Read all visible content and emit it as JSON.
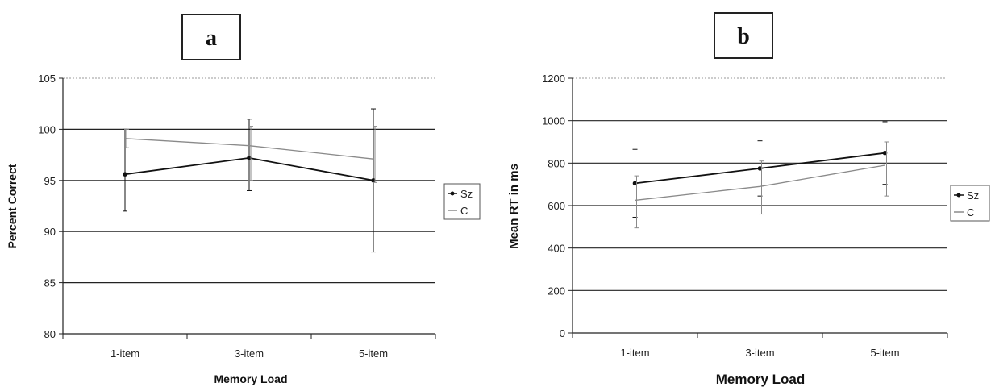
{
  "chart_data": [
    {
      "type": "line",
      "panel_label": "a",
      "categories": [
        "1-item",
        "3-item",
        "5-item"
      ],
      "xlabel": "Memory Load",
      "ylabel": "Percent Correct",
      "ylim": [
        80,
        105
      ],
      "yticks": [
        80,
        85,
        90,
        95,
        100,
        105
      ],
      "grid": true,
      "legend_position": "right",
      "series": [
        {
          "name": "Sz",
          "values": [
            95.6,
            97.2,
            95.0
          ],
          "err_low": [
            92.0,
            94.0,
            88.0
          ],
          "err_high": [
            100.0,
            101.0,
            102.0
          ],
          "color": "#111111",
          "marker": "dot"
        },
        {
          "name": "C",
          "values": [
            99.1,
            98.4,
            97.1
          ],
          "err_low": [
            98.2,
            95.0,
            94.8
          ],
          "err_high": [
            100.0,
            100.3,
            100.3
          ],
          "color": "#8a8a8a",
          "marker": "none"
        }
      ]
    },
    {
      "type": "line",
      "panel_label": "b",
      "categories": [
        "1-item",
        "3-item",
        "5-item"
      ],
      "xlabel": "Memory Load",
      "ylabel": "Mean RT in ms",
      "ylim": [
        0,
        1200
      ],
      "yticks": [
        0,
        200,
        400,
        600,
        800,
        1000,
        1200
      ],
      "grid": true,
      "legend_position": "right",
      "series": [
        {
          "name": "Sz",
          "values": [
            705,
            775,
            848
          ],
          "err_low": [
            545,
            645,
            700
          ],
          "err_high": [
            865,
            905,
            995
          ],
          "color": "#111111",
          "marker": "dot"
        },
        {
          "name": "C",
          "values": [
            625,
            690,
            790
          ],
          "err_low": [
            495,
            560,
            645
          ],
          "err_high": [
            740,
            810,
            900
          ],
          "color": "#8a8a8a",
          "marker": "none"
        }
      ]
    }
  ]
}
